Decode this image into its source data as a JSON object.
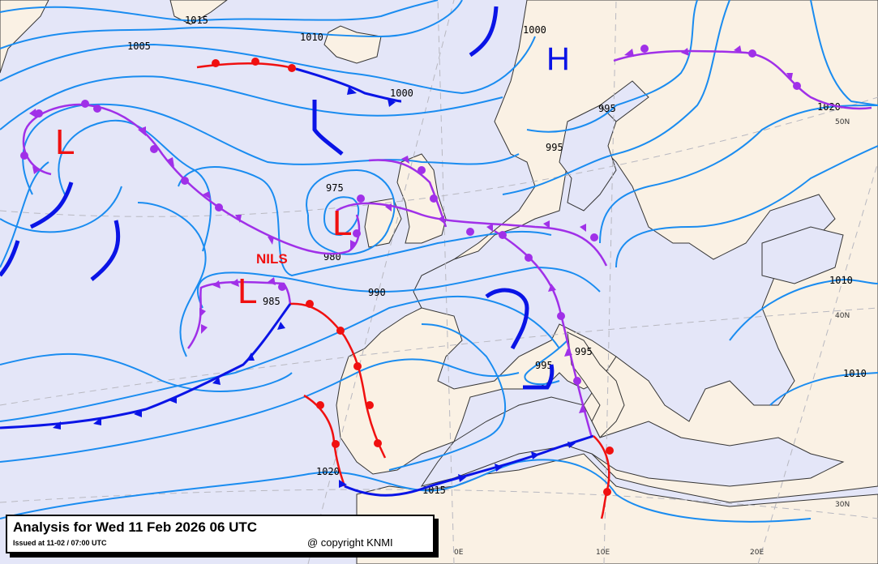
{
  "map": {
    "colors": {
      "sea": "#e4e6f8",
      "land": "#faf1e4",
      "isobar": "#1a8cf0",
      "warm_front": "#f01010",
      "cold_front": "#0a14e6",
      "occluded_front": "#a030e8",
      "pressure_symbol": "#f01010",
      "high_symbol": "#0a14e6"
    },
    "pressure_centers": [
      {
        "type": "L",
        "name": ""
      },
      {
        "type": "L",
        "name": ""
      },
      {
        "type": "L",
        "name": "NILS"
      },
      {
        "type": "H",
        "name": ""
      }
    ],
    "isobar_labels": [
      "1015",
      "1010",
      "1005",
      "1000",
      "1000",
      "995",
      "995",
      "975",
      "980",
      "985",
      "990",
      "995",
      "995",
      "1010",
      "1010",
      "1020",
      "1020",
      "1015"
    ],
    "latitude_labels": [
      "50N",
      "40N",
      "30N"
    ],
    "longitude_labels": [
      "0E",
      "10E",
      "20E"
    ]
  },
  "caption": {
    "title": "Analysis for Wed 11 Feb 2026 06 UTC",
    "issued": "Issued at 11-02 / 07:00 UTC",
    "copyright": "@ copyright KNMI"
  }
}
